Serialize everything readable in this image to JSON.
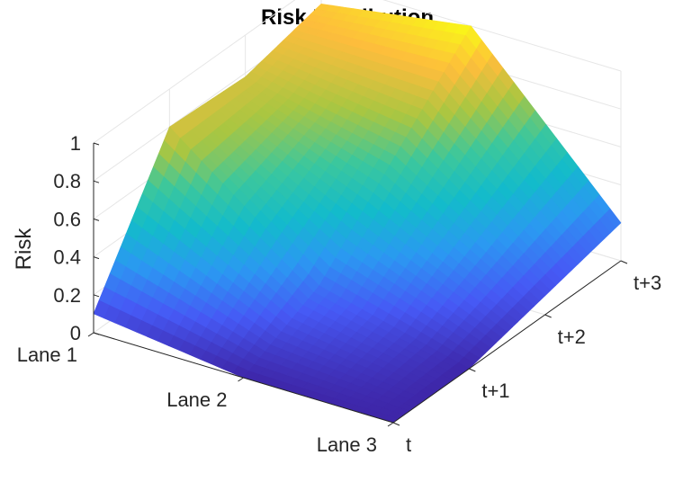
{
  "chart_data": {
    "type": "surface",
    "title": "Risk Distribution",
    "xlabel": "",
    "ylabel": "",
    "zlabel": "Risk",
    "x_categories": [
      "Lane 1",
      "Lane 2",
      "Lane 3"
    ],
    "y_categories": [
      "t",
      "t+1",
      "t+2",
      "t+3"
    ],
    "z_ticks": [
      "0",
      "0.2",
      "0.4",
      "0.6",
      "0.8",
      "1"
    ],
    "zlim": [
      0,
      1
    ],
    "grid": true,
    "colormap": "parula",
    "colormap_stops": [
      "#3e26a8",
      "#4659f5",
      "#2b98f2",
      "#13bbcb",
      "#3bc79d",
      "#aac641",
      "#fdbd3c",
      "#f9fb15"
    ],
    "z": [
      [
        0.1,
        0.8,
        0.78,
        0.88
      ],
      [
        0.0,
        0.2,
        0.6,
        1.0
      ],
      [
        0.0,
        0.0,
        0.1,
        0.2
      ]
    ]
  }
}
